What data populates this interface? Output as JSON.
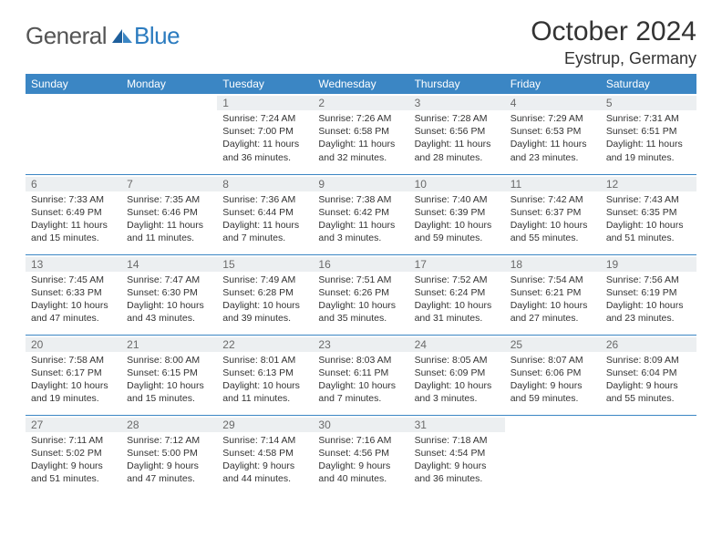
{
  "logo": {
    "word1": "General",
    "word2": "Blue"
  },
  "title": "October 2024",
  "location": "Eystrup, Germany",
  "colors": {
    "header_bg": "#3b86c4",
    "header_fg": "#ffffff",
    "daynum_bg": "#eceff1",
    "daynum_fg": "#6a6a6a",
    "row_divider": "#3b86c4",
    "body_text": "#333333",
    "logo_gray": "#555555",
    "logo_blue": "#2b7bbf"
  },
  "typography": {
    "title_fontsize": 30,
    "location_fontsize": 18,
    "header_fontsize": 12,
    "daynum_fontsize": 12,
    "cell_fontsize": 10.5
  },
  "calendar": {
    "type": "table",
    "columns": [
      "Sunday",
      "Monday",
      "Tuesday",
      "Wednesday",
      "Thursday",
      "Friday",
      "Saturday"
    ],
    "weeks": [
      [
        null,
        null,
        {
          "day": "1",
          "sunrise": "Sunrise: 7:24 AM",
          "sunset": "Sunset: 7:00 PM",
          "daylight": "Daylight: 11 hours and 36 minutes."
        },
        {
          "day": "2",
          "sunrise": "Sunrise: 7:26 AM",
          "sunset": "Sunset: 6:58 PM",
          "daylight": "Daylight: 11 hours and 32 minutes."
        },
        {
          "day": "3",
          "sunrise": "Sunrise: 7:28 AM",
          "sunset": "Sunset: 6:56 PM",
          "daylight": "Daylight: 11 hours and 28 minutes."
        },
        {
          "day": "4",
          "sunrise": "Sunrise: 7:29 AM",
          "sunset": "Sunset: 6:53 PM",
          "daylight": "Daylight: 11 hours and 23 minutes."
        },
        {
          "day": "5",
          "sunrise": "Sunrise: 7:31 AM",
          "sunset": "Sunset: 6:51 PM",
          "daylight": "Daylight: 11 hours and 19 minutes."
        }
      ],
      [
        {
          "day": "6",
          "sunrise": "Sunrise: 7:33 AM",
          "sunset": "Sunset: 6:49 PM",
          "daylight": "Daylight: 11 hours and 15 minutes."
        },
        {
          "day": "7",
          "sunrise": "Sunrise: 7:35 AM",
          "sunset": "Sunset: 6:46 PM",
          "daylight": "Daylight: 11 hours and 11 minutes."
        },
        {
          "day": "8",
          "sunrise": "Sunrise: 7:36 AM",
          "sunset": "Sunset: 6:44 PM",
          "daylight": "Daylight: 11 hours and 7 minutes."
        },
        {
          "day": "9",
          "sunrise": "Sunrise: 7:38 AM",
          "sunset": "Sunset: 6:42 PM",
          "daylight": "Daylight: 11 hours and 3 minutes."
        },
        {
          "day": "10",
          "sunrise": "Sunrise: 7:40 AM",
          "sunset": "Sunset: 6:39 PM",
          "daylight": "Daylight: 10 hours and 59 minutes."
        },
        {
          "day": "11",
          "sunrise": "Sunrise: 7:42 AM",
          "sunset": "Sunset: 6:37 PM",
          "daylight": "Daylight: 10 hours and 55 minutes."
        },
        {
          "day": "12",
          "sunrise": "Sunrise: 7:43 AM",
          "sunset": "Sunset: 6:35 PM",
          "daylight": "Daylight: 10 hours and 51 minutes."
        }
      ],
      [
        {
          "day": "13",
          "sunrise": "Sunrise: 7:45 AM",
          "sunset": "Sunset: 6:33 PM",
          "daylight": "Daylight: 10 hours and 47 minutes."
        },
        {
          "day": "14",
          "sunrise": "Sunrise: 7:47 AM",
          "sunset": "Sunset: 6:30 PM",
          "daylight": "Daylight: 10 hours and 43 minutes."
        },
        {
          "day": "15",
          "sunrise": "Sunrise: 7:49 AM",
          "sunset": "Sunset: 6:28 PM",
          "daylight": "Daylight: 10 hours and 39 minutes."
        },
        {
          "day": "16",
          "sunrise": "Sunrise: 7:51 AM",
          "sunset": "Sunset: 6:26 PM",
          "daylight": "Daylight: 10 hours and 35 minutes."
        },
        {
          "day": "17",
          "sunrise": "Sunrise: 7:52 AM",
          "sunset": "Sunset: 6:24 PM",
          "daylight": "Daylight: 10 hours and 31 minutes."
        },
        {
          "day": "18",
          "sunrise": "Sunrise: 7:54 AM",
          "sunset": "Sunset: 6:21 PM",
          "daylight": "Daylight: 10 hours and 27 minutes."
        },
        {
          "day": "19",
          "sunrise": "Sunrise: 7:56 AM",
          "sunset": "Sunset: 6:19 PM",
          "daylight": "Daylight: 10 hours and 23 minutes."
        }
      ],
      [
        {
          "day": "20",
          "sunrise": "Sunrise: 7:58 AM",
          "sunset": "Sunset: 6:17 PM",
          "daylight": "Daylight: 10 hours and 19 minutes."
        },
        {
          "day": "21",
          "sunrise": "Sunrise: 8:00 AM",
          "sunset": "Sunset: 6:15 PM",
          "daylight": "Daylight: 10 hours and 15 minutes."
        },
        {
          "day": "22",
          "sunrise": "Sunrise: 8:01 AM",
          "sunset": "Sunset: 6:13 PM",
          "daylight": "Daylight: 10 hours and 11 minutes."
        },
        {
          "day": "23",
          "sunrise": "Sunrise: 8:03 AM",
          "sunset": "Sunset: 6:11 PM",
          "daylight": "Daylight: 10 hours and 7 minutes."
        },
        {
          "day": "24",
          "sunrise": "Sunrise: 8:05 AM",
          "sunset": "Sunset: 6:09 PM",
          "daylight": "Daylight: 10 hours and 3 minutes."
        },
        {
          "day": "25",
          "sunrise": "Sunrise: 8:07 AM",
          "sunset": "Sunset: 6:06 PM",
          "daylight": "Daylight: 9 hours and 59 minutes."
        },
        {
          "day": "26",
          "sunrise": "Sunrise: 8:09 AM",
          "sunset": "Sunset: 6:04 PM",
          "daylight": "Daylight: 9 hours and 55 minutes."
        }
      ],
      [
        {
          "day": "27",
          "sunrise": "Sunrise: 7:11 AM",
          "sunset": "Sunset: 5:02 PM",
          "daylight": "Daylight: 9 hours and 51 minutes."
        },
        {
          "day": "28",
          "sunrise": "Sunrise: 7:12 AM",
          "sunset": "Sunset: 5:00 PM",
          "daylight": "Daylight: 9 hours and 47 minutes."
        },
        {
          "day": "29",
          "sunrise": "Sunrise: 7:14 AM",
          "sunset": "Sunset: 4:58 PM",
          "daylight": "Daylight: 9 hours and 44 minutes."
        },
        {
          "day": "30",
          "sunrise": "Sunrise: 7:16 AM",
          "sunset": "Sunset: 4:56 PM",
          "daylight": "Daylight: 9 hours and 40 minutes."
        },
        {
          "day": "31",
          "sunrise": "Sunrise: 7:18 AM",
          "sunset": "Sunset: 4:54 PM",
          "daylight": "Daylight: 9 hours and 36 minutes."
        },
        null,
        null
      ]
    ]
  }
}
